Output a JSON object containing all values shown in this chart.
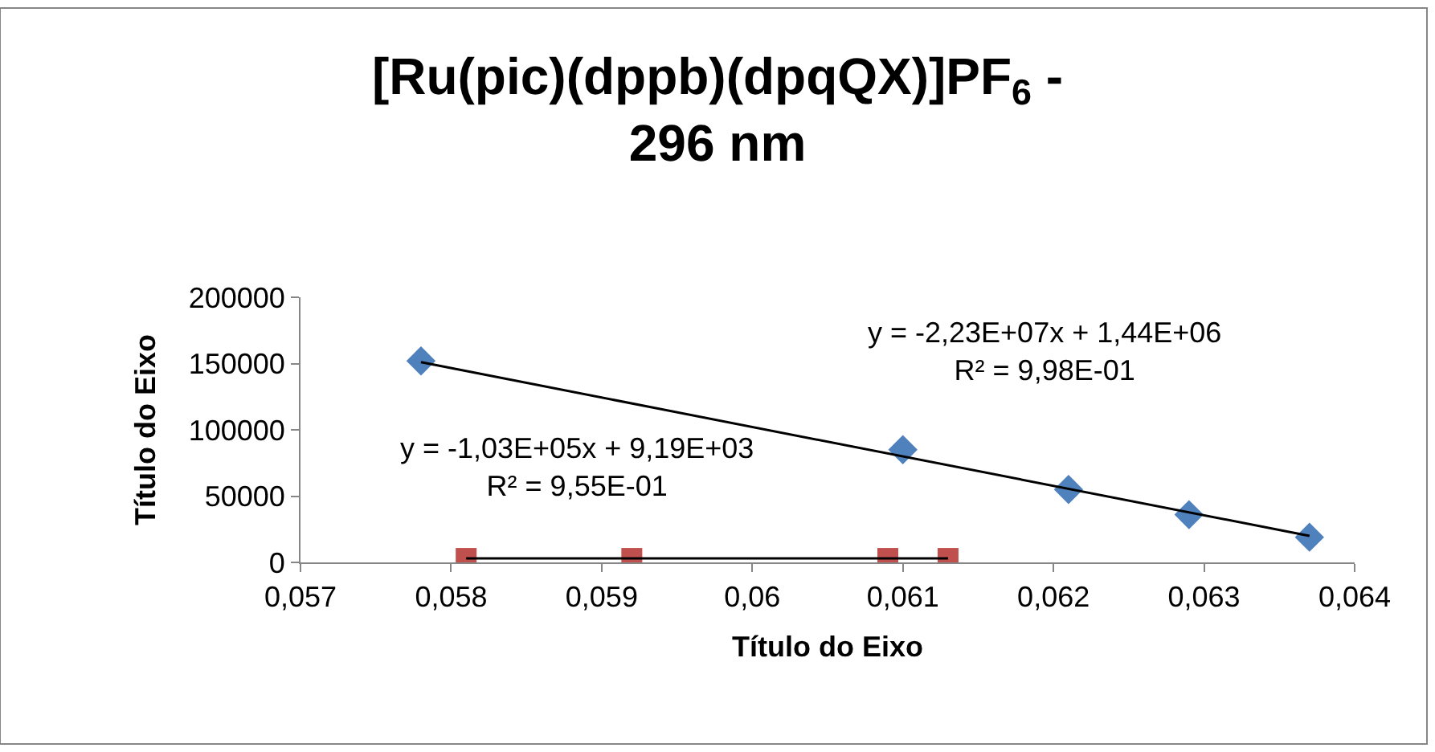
{
  "chart_data": {
    "type": "scatter",
    "title": "[Ru(pic)(dppb)(dpqQX)]PF$_{6}$ -\n296 nm",
    "xlabel": "Título do Eixo",
    "ylabel": "Título do Eixo",
    "xlim": [
      0.057,
      0.064
    ],
    "xticks": [
      {
        "value": 0.057,
        "label": "0,057"
      },
      {
        "value": 0.058,
        "label": "0,058"
      },
      {
        "value": 0.059,
        "label": "0,059"
      },
      {
        "value": 0.06,
        "label": "0,06"
      },
      {
        "value": 0.061,
        "label": "0,061"
      },
      {
        "value": 0.062,
        "label": "0,062"
      },
      {
        "value": 0.063,
        "label": "0,063"
      },
      {
        "value": 0.064,
        "label": "0,064"
      }
    ],
    "ylim": [
      0,
      200000
    ],
    "yticks": [
      0,
      50000,
      100000,
      150000,
      200000
    ],
    "series": [
      {
        "color": "#4f81bd",
        "marker": "diamond",
        "x": [
          0.0578,
          0.061,
          0.0621,
          0.0629,
          0.0637
        ],
        "values": [
          152000,
          85000,
          55000,
          36000,
          19000
        ]
      },
      {
        "color": "#c0504d",
        "marker": "square",
        "x": [
          0.0581,
          0.0592,
          0.0609,
          0.0613
        ],
        "values": [
          3000,
          3000,
          3000,
          3000
        ]
      },
      {
        "type": "line",
        "color": "#000000",
        "marker": "none",
        "x": [
          0.0578,
          0.0637
        ],
        "values": [
          151000,
          20000
        ]
      },
      {
        "type": "line",
        "color": "#000000",
        "marker": "none",
        "x": [
          0.0581,
          0.0613
        ],
        "values": [
          3000,
          3000
        ]
      }
    ],
    "annotations": [
      "y = -2,23E+07x + 1,44E+06\nR² = 9,98E-01",
      "y = -1,03E+05x + 9,19E+03\nR² = 9,55E-01"
    ]
  }
}
